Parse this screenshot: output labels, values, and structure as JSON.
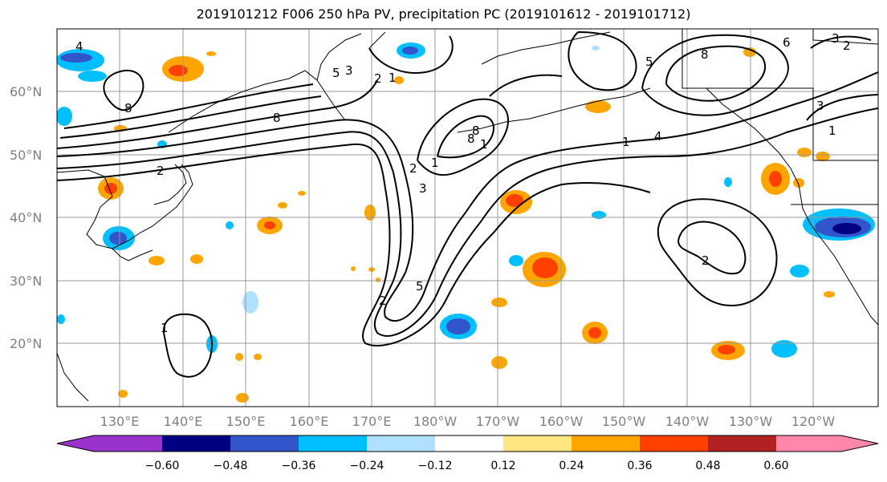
{
  "title": "2019101212 F006 250 hPa PV, precipitation PC (2019101612 - 2019101712)",
  "map": {
    "lat_labels": [
      "60°N",
      "50°N",
      "40°N",
      "30°N",
      "20°N"
    ],
    "lon_labels": [
      "130°E",
      "140°E",
      "150°E",
      "160°E",
      "170°E",
      "180°W",
      "170°W",
      "160°W",
      "150°W",
      "140°W",
      "130°W",
      "120°W"
    ],
    "contour_labels": [
      "8",
      "8",
      "5",
      "3",
      "2",
      "1",
      "1",
      "2",
      "3",
      "4",
      "8",
      "1",
      "8",
      "5",
      "2",
      "5",
      "2",
      "1",
      "2",
      "4",
      "1",
      "3",
      "3",
      "6",
      "2",
      "1",
      "8"
    ]
  },
  "colorbar": {
    "tick_labels": [
      "−0.60",
      "−0.48",
      "−0.36",
      "−0.24",
      "−0.12",
      "0.12",
      "0.24",
      "0.36",
      "0.48",
      "0.60"
    ],
    "colors": [
      "#9933cc",
      "#000080",
      "#3355cc",
      "#00bfff",
      "#b0e0ff",
      "#ffffff",
      "#ffe680",
      "#ffa500",
      "#ff4000",
      "#b22222",
      "#ff88aa"
    ]
  }
}
